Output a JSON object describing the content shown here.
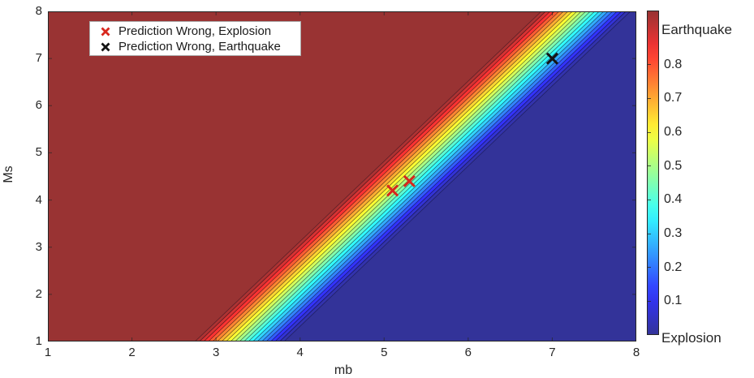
{
  "figure": {
    "x_axis_label": "mb",
    "y_axis_label": "Ms"
  },
  "legend": {
    "items": [
      {
        "label": "Prediction Wrong, Explosion",
        "marker": "x",
        "color": "#d8271d"
      },
      {
        "label": "Prediction Wrong, Earthquake",
        "marker": "x",
        "color": "#141414"
      }
    ]
  },
  "colorbar": {
    "top_label": "Earthquake",
    "bottom_label": "Explosion",
    "ticks": [
      0.1,
      0.2,
      0.3,
      0.4,
      0.5,
      0.6,
      0.7,
      0.8
    ],
    "range": [
      0,
      0.96
    ],
    "colormap": "jet"
  },
  "chart_data": {
    "type": "heatmap",
    "title": "",
    "xlabel": "mb",
    "ylabel": "Ms",
    "xlim": [
      1,
      8
    ],
    "ylim": [
      1,
      8
    ],
    "xticks": [
      1,
      2,
      3,
      4,
      5,
      6,
      7,
      8
    ],
    "yticks": [
      1,
      2,
      3,
      4,
      5,
      6,
      7,
      8
    ],
    "grid": false,
    "legend_position": "top-left-inside",
    "regions": {
      "upper_left": {
        "class": "Earthquake",
        "probability": "high",
        "color_hex": "#993333"
      },
      "lower_right": {
        "class": "Explosion",
        "probability": "low",
        "color_hex": "#3333a0"
      }
    },
    "decision_boundary": {
      "description": "diagonal contour band from red (Earthquake) to blue (Explosion)",
      "points": [
        [
          3.28,
          1.0
        ],
        [
          7.4,
          8.0
        ]
      ],
      "band_width_mb": 1.06,
      "contour_levels": 20
    },
    "markers": [
      {
        "x": 5.1,
        "y": 4.2,
        "shape": "x",
        "color": "#d8271d",
        "class": "Prediction Wrong, Explosion"
      },
      {
        "x": 5.3,
        "y": 4.4,
        "shape": "x",
        "color": "#d8271d",
        "class": "Prediction Wrong, Explosion"
      },
      {
        "x": 7.0,
        "y": 7.0,
        "shape": "x",
        "color": "#141414",
        "class": "Prediction Wrong, Earthquake"
      }
    ]
  }
}
